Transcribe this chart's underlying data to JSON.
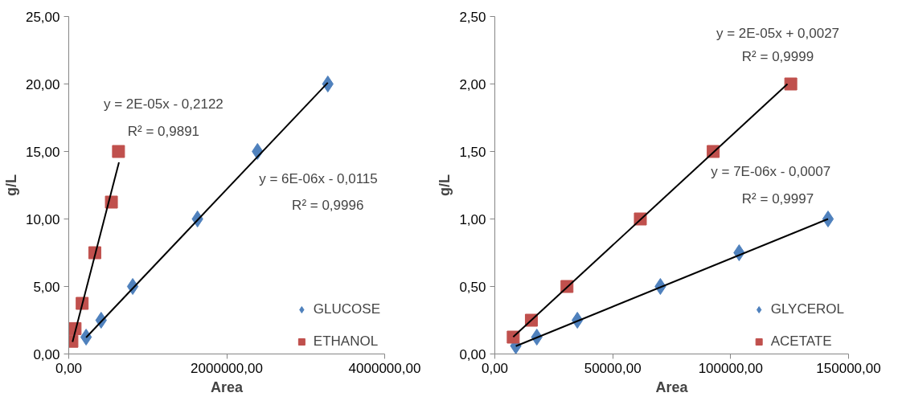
{
  "chart_data": [
    {
      "type": "scatter",
      "xlabel": "Area",
      "ylabel": "g/L",
      "xlim": [
        0,
        4000000
      ],
      "ylim": [
        0,
        25
      ],
      "xticks": [
        {
          "value": 0,
          "label": "0,00"
        },
        {
          "value": 2000000,
          "label": "2000000,00"
        },
        {
          "value": 4000000,
          "label": "4000000,00"
        }
      ],
      "yticks": [
        {
          "value": 0,
          "label": "0,00"
        },
        {
          "value": 5,
          "label": "5,00"
        },
        {
          "value": 10,
          "label": "10,00"
        },
        {
          "value": 15,
          "label": "15,00"
        },
        {
          "value": 20,
          "label": "20,00"
        },
        {
          "value": 25,
          "label": "25,00"
        }
      ],
      "grid": false,
      "legend": "right",
      "series": [
        {
          "name": "GLUCOSE",
          "color": "#4f81bd",
          "marker": "diamond",
          "x": [
            220000,
            410000,
            810000,
            1630000,
            2390000,
            3280000
          ],
          "values": [
            1.25,
            2.5,
            5,
            10,
            15,
            20
          ]
        },
        {
          "name": "ETHANOL",
          "color": "#c0504d",
          "marker": "square",
          "x": [
            40000,
            80000,
            170000,
            330000,
            540000,
            630000
          ],
          "values": [
            0.94,
            1.88,
            3.75,
            7.5,
            11.25,
            15
          ]
        },
        {
          "type": "line",
          "color": "#000000",
          "x": [
            220000,
            3280000
          ],
          "values": [
            1.22,
            20.1
          ]
        },
        {
          "type": "line",
          "color": "#000000",
          "x": [
            48000,
            636000
          ],
          "values": [
            0.89,
            14.2
          ]
        }
      ],
      "annotations": [
        "y = 2E-05x - 0,2122",
        "R² = 0,9891",
        "y = 6E-06x - 0,0115",
        "R² = 0,9996"
      ]
    },
    {
      "type": "scatter",
      "xlabel": "Area",
      "ylabel": "g/L",
      "xlim": [
        0,
        150000
      ],
      "ylim": [
        0,
        2.5
      ],
      "xticks": [
        {
          "value": 0,
          "label": "0,00"
        },
        {
          "value": 50000,
          "label": "50000,00"
        },
        {
          "value": 100000,
          "label": "100000,00"
        },
        {
          "value": 150000,
          "label": "150000,00"
        }
      ],
      "yticks": [
        {
          "value": 0,
          "label": "0,00"
        },
        {
          "value": 0.5,
          "label": "0,50"
        },
        {
          "value": 1,
          "label": "1,00"
        },
        {
          "value": 1.5,
          "label": "1,50"
        },
        {
          "value": 2,
          "label": "2,00"
        },
        {
          "value": 2.5,
          "label": "2,50"
        }
      ],
      "grid": false,
      "legend": "right",
      "series": [
        {
          "name": "GLYCEROL",
          "color": "#4f81bd",
          "marker": "diamond",
          "x": [
            8900,
            17800,
            35000,
            70200,
            103600,
            141300
          ],
          "values": [
            0.06,
            0.125,
            0.25,
            0.5,
            0.75,
            1
          ]
        },
        {
          "name": "ACETATE",
          "color": "#c0504d",
          "marker": "square",
          "x": [
            7800,
            15500,
            30600,
            61700,
            92600,
            125500
          ],
          "values": [
            0.125,
            0.25,
            0.5,
            1,
            1.5,
            2
          ]
        },
        {
          "type": "line",
          "color": "#000000",
          "x": [
            8900,
            141300
          ],
          "values": [
            0.058,
            1.0
          ]
        },
        {
          "type": "line",
          "color": "#000000",
          "x": [
            7800,
            124100
          ],
          "values": [
            0.126,
            2.0
          ]
        }
      ],
      "annotations": [
        "y = 2E-05x + 0,0027",
        "R² = 0,9999",
        "y = 7E-06x - 0,0007",
        "R² = 0,9997"
      ]
    }
  ]
}
